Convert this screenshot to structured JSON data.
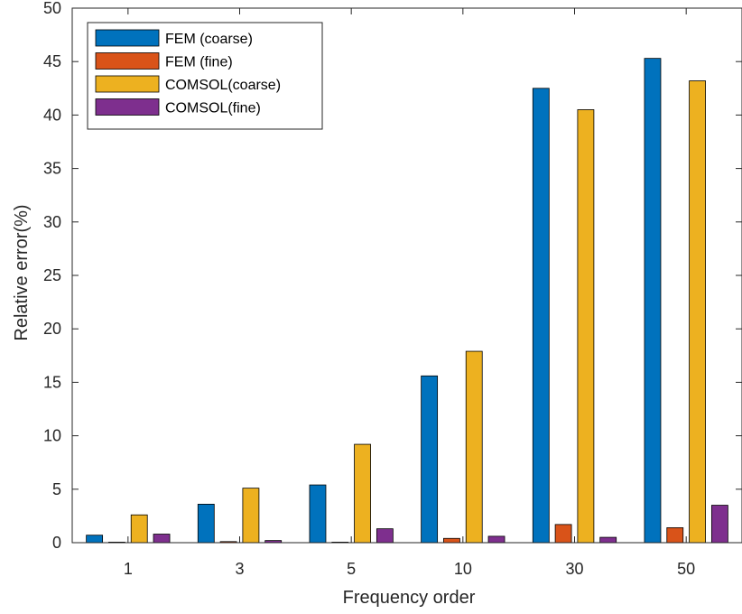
{
  "chart_data": {
    "type": "bar",
    "title": "",
    "xlabel": "Frequency order",
    "ylabel": "Relative error(%)",
    "categories": [
      "1",
      "3",
      "5",
      "10",
      "30",
      "50"
    ],
    "ylim": [
      0,
      50
    ],
    "yticks": [
      0,
      5,
      10,
      15,
      20,
      25,
      30,
      35,
      40,
      45,
      50
    ],
    "grid": false,
    "legend_position": "top-left",
    "series": [
      {
        "name": "FEM (coarse)",
        "color": "#0072BD",
        "values": [
          0.7,
          3.6,
          5.4,
          15.6,
          42.5,
          45.3
        ]
      },
      {
        "name": "FEM (fine)",
        "color": "#D95319",
        "values": [
          0.05,
          0.1,
          0.05,
          0.4,
          1.7,
          1.4
        ]
      },
      {
        "name": "COMSOL(coarse)",
        "color": "#EDB120",
        "values": [
          2.6,
          5.1,
          9.2,
          17.9,
          40.5,
          43.2
        ]
      },
      {
        "name": "COMSOL(fine)",
        "color": "#7E2F8E",
        "values": [
          0.8,
          0.2,
          1.3,
          0.6,
          0.5,
          3.5
        ]
      }
    ]
  }
}
